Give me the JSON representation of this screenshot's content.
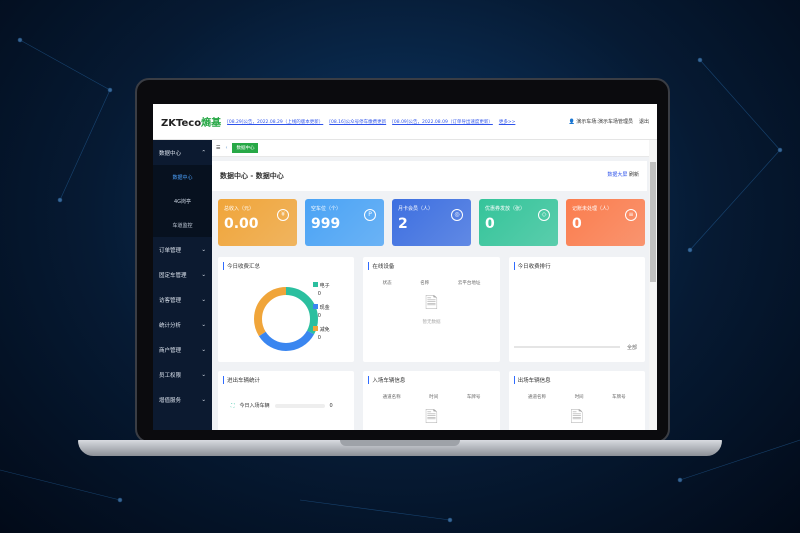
{
  "header": {
    "logo": "ZKTeco",
    "logo_cn": "熵基",
    "notices": [
      "[08.29]公告，2022.08.29（上线的版本更新）",
      "[08.16]公众号停车缴费更新",
      "[08.09]公告，2022.08.09（订单导出速度更新）"
    ],
    "more": "更多>>",
    "user": "演示车场:演示车场管理员",
    "logout": "退出"
  },
  "sidebar": {
    "items": [
      {
        "label": "数据中心",
        "sub": [
          "数据中心",
          "4G岗亭",
          "车道监控"
        ]
      },
      {
        "label": "订单管理"
      },
      {
        "label": "固定车管理"
      },
      {
        "label": "访客管理"
      },
      {
        "label": "统计分析"
      },
      {
        "label": "商户管理"
      },
      {
        "label": "员工权限"
      },
      {
        "label": "增值服务"
      }
    ]
  },
  "tabs": {
    "active": "数据中心"
  },
  "page": {
    "title": "数据中心 - 数据中心",
    "bigscreen": "数据大屏",
    "refresh": "刷新"
  },
  "cards": [
    {
      "label": "总收入（元）",
      "value": "0.00",
      "color": "#f0a53a",
      "icon": "¥"
    },
    {
      "label": "空车位（个）",
      "value": "999",
      "color": "#4aa3f5",
      "icon": "P"
    },
    {
      "label": "月卡会员（人）",
      "value": "2",
      "color": "#3d6fe0",
      "icon": "◎"
    },
    {
      "label": "优惠券发放（张）",
      "value": "0",
      "color": "#35c49a",
      "icon": "◇"
    },
    {
      "label": "记账未处理（人）",
      "value": "0",
      "color": "#fb7d4e",
      "icon": "≡"
    }
  ],
  "panels": {
    "summary": {
      "title": "今日收费汇总",
      "legend": [
        {
          "label": "电子",
          "value": "0",
          "color": "#2bbf9f"
        },
        {
          "label": "现金",
          "value": "0",
          "color": "#3a86f0"
        },
        {
          "label": "减免",
          "value": "0",
          "color": "#f0a53a"
        }
      ]
    },
    "devices": {
      "title": "在线设备",
      "cols": [
        "状态",
        "名称",
        "云平台地址"
      ],
      "empty": "暂无数据"
    },
    "ranking": {
      "title": "今日收费排行",
      "all": "全部"
    },
    "traffic": {
      "title": "进出车辆统计",
      "row": "今日入场车辆",
      "value": "0"
    },
    "entry": {
      "title": "入场车辆信息",
      "cols": [
        "通道名称",
        "时间",
        "车牌号"
      ]
    },
    "exit": {
      "title": "出场车辆信息",
      "cols": [
        "通道名称",
        "时间",
        "车牌号"
      ]
    }
  }
}
